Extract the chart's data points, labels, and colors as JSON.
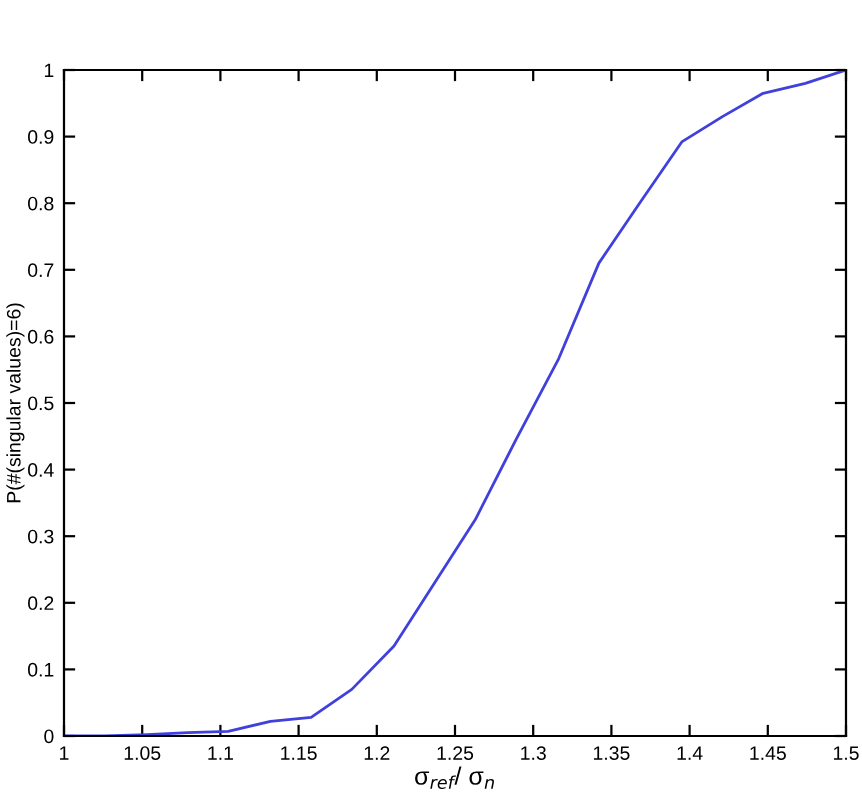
{
  "chart_data": {
    "type": "line",
    "xlabel": "σ$_{ref}$/ σ$_{n}$",
    "ylabel": "P(#(singular values)=6)",
    "x": [
      1,
      1.026,
      1.053,
      1.079,
      1.105,
      1.132,
      1.158,
      1.184,
      1.211,
      1.237,
      1.263,
      1.289,
      1.316,
      1.342,
      1.368,
      1.395,
      1.421,
      1.447,
      1.474,
      1.5
    ],
    "series": [
      {
        "color": "#4040dd",
        "values": [
          0,
          0,
          0.002,
          0.005,
          0.007,
          0.022,
          0.028,
          0.07,
          0.135,
          0.23,
          0.325,
          0.445,
          0.565,
          0.71,
          0.8,
          0.892,
          0.93,
          0.965,
          0.98,
          1.0
        ]
      }
    ],
    "xlim": [
      1,
      1.5
    ],
    "xticks": [
      1,
      1.05,
      1.1,
      1.15,
      1.2,
      1.25,
      1.3,
      1.35,
      1.4,
      1.45,
      1.5
    ],
    "ylim": [
      0,
      1
    ],
    "yticks": [
      0,
      0.1,
      0.2,
      0.3,
      0.4,
      0.5,
      0.6,
      0.7,
      0.8,
      0.9,
      1
    ],
    "grid": false,
    "legend": false,
    "marker": "none",
    "line_style": "solid"
  }
}
